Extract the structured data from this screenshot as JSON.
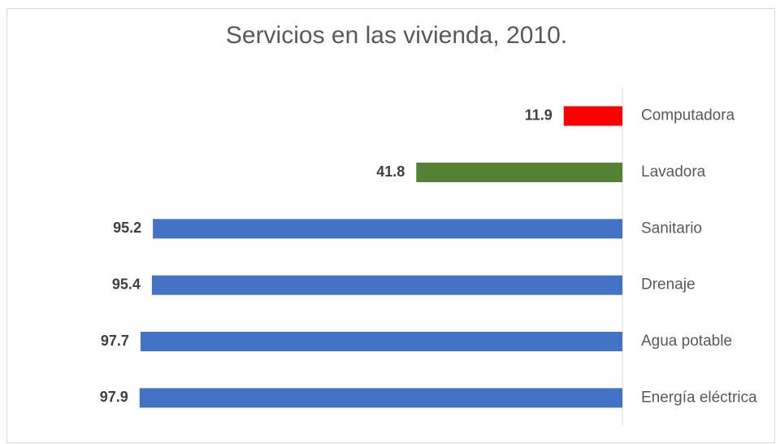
{
  "chart_data": {
    "type": "bar",
    "orientation": "horizontal",
    "title": "Servicios en las vivienda, 2010.",
    "categories": [
      "Computadora",
      "Lavadora",
      "Sanitario",
      "Drenaje",
      "Agua potable",
      "Energía eléctrica"
    ],
    "values": [
      11.9,
      41.8,
      95.2,
      95.4,
      97.7,
      97.9
    ],
    "colors": [
      "#ff0000",
      "#548235",
      "#4472c4",
      "#4472c4",
      "#4472c4",
      "#4472c4"
    ],
    "xlim": [
      100,
      0
    ]
  }
}
